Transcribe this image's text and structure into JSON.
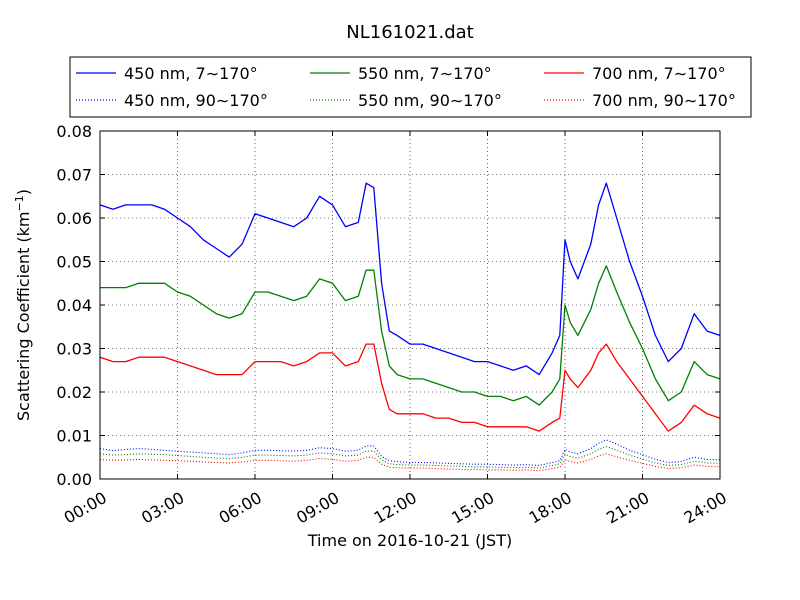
{
  "chart_data": {
    "type": "line",
    "title": "NL161021.dat",
    "xlabel": "Time on 2016-10-21 (JST)",
    "ylabel": "Scattering Coefficient (km",
    "ylabel_sup": "−1",
    "ylabel_end": ")",
    "xlim": [
      0,
      24
    ],
    "ylim": [
      0,
      0.08
    ],
    "grid": true,
    "legend_position": "top",
    "x_ticks": [
      0,
      3,
      6,
      9,
      12,
      15,
      18,
      21,
      24
    ],
    "x_tick_labels": [
      "00:00",
      "03:00",
      "06:00",
      "09:00",
      "12:00",
      "15:00",
      "18:00",
      "21:00",
      "24:00"
    ],
    "y_ticks": [
      0,
      0.01,
      0.02,
      0.03,
      0.04,
      0.05,
      0.06,
      0.07,
      0.08
    ],
    "y_tick_labels": [
      "0.00",
      "0.01",
      "0.02",
      "0.03",
      "0.04",
      "0.05",
      "0.06",
      "0.07",
      "0.08"
    ],
    "x": [
      0,
      0.5,
      1,
      1.5,
      2,
      2.5,
      3,
      3.5,
      4,
      4.5,
      5,
      5.5,
      6,
      6.5,
      7,
      7.5,
      8,
      8.5,
      9,
      9.5,
      10,
      10.3,
      10.6,
      10.9,
      11.2,
      11.5,
      12,
      12.5,
      13,
      13.5,
      14,
      14.5,
      15,
      15.5,
      16,
      16.5,
      17,
      17.5,
      17.8,
      18,
      18.2,
      18.5,
      19,
      19.3,
      19.6,
      20,
      20.5,
      21,
      21.5,
      22,
      22.5,
      23,
      23.5,
      24
    ],
    "series": [
      {
        "name": "450 nm, 7∼170°",
        "color": "#0000ff",
        "style": "solid",
        "values": [
          0.063,
          0.062,
          0.063,
          0.063,
          0.063,
          0.062,
          0.06,
          0.058,
          0.055,
          0.053,
          0.051,
          0.054,
          0.061,
          0.06,
          0.059,
          0.058,
          0.06,
          0.065,
          0.063,
          0.058,
          0.059,
          0.068,
          0.067,
          0.045,
          0.034,
          0.033,
          0.031,
          0.031,
          0.03,
          0.029,
          0.028,
          0.027,
          0.027,
          0.026,
          0.025,
          0.026,
          0.024,
          0.029,
          0.033,
          0.055,
          0.05,
          0.046,
          0.054,
          0.063,
          0.068,
          0.06,
          0.05,
          0.042,
          0.033,
          0.027,
          0.03,
          0.038,
          0.034,
          0.033
        ]
      },
      {
        "name": "550 nm, 7∼170°",
        "color": "#008000",
        "style": "solid",
        "values": [
          0.044,
          0.044,
          0.044,
          0.045,
          0.045,
          0.045,
          0.043,
          0.042,
          0.04,
          0.038,
          0.037,
          0.038,
          0.043,
          0.043,
          0.042,
          0.041,
          0.042,
          0.046,
          0.045,
          0.041,
          0.042,
          0.048,
          0.048,
          0.034,
          0.026,
          0.024,
          0.023,
          0.023,
          0.022,
          0.021,
          0.02,
          0.02,
          0.019,
          0.019,
          0.018,
          0.019,
          0.017,
          0.02,
          0.023,
          0.04,
          0.036,
          0.033,
          0.039,
          0.045,
          0.049,
          0.043,
          0.036,
          0.03,
          0.023,
          0.018,
          0.02,
          0.027,
          0.024,
          0.023
        ]
      },
      {
        "name": "700 nm, 7∼170°",
        "color": "#ff0000",
        "style": "solid",
        "values": [
          0.028,
          0.027,
          0.027,
          0.028,
          0.028,
          0.028,
          0.027,
          0.026,
          0.025,
          0.024,
          0.024,
          0.024,
          0.027,
          0.027,
          0.027,
          0.026,
          0.027,
          0.029,
          0.029,
          0.026,
          0.027,
          0.031,
          0.031,
          0.022,
          0.016,
          0.015,
          0.015,
          0.015,
          0.014,
          0.014,
          0.013,
          0.013,
          0.012,
          0.012,
          0.012,
          0.012,
          0.011,
          0.013,
          0.014,
          0.025,
          0.023,
          0.021,
          0.025,
          0.029,
          0.031,
          0.027,
          0.023,
          0.019,
          0.015,
          0.011,
          0.013,
          0.017,
          0.015,
          0.014
        ]
      },
      {
        "name": "450 nm, 90∼170°",
        "color": "#0000ff",
        "style": "dotted",
        "values": [
          0.007,
          0.0065,
          0.0068,
          0.007,
          0.0068,
          0.0066,
          0.0064,
          0.0062,
          0.006,
          0.0058,
          0.0056,
          0.006,
          0.0066,
          0.0066,
          0.0065,
          0.0064,
          0.0066,
          0.0072,
          0.007,
          0.0064,
          0.0066,
          0.0076,
          0.0076,
          0.0052,
          0.0042,
          0.004,
          0.0038,
          0.0038,
          0.0037,
          0.0036,
          0.0035,
          0.0034,
          0.0034,
          0.0033,
          0.0032,
          0.0033,
          0.0031,
          0.0038,
          0.0042,
          0.0068,
          0.0062,
          0.0058,
          0.007,
          0.0082,
          0.009,
          0.008,
          0.0066,
          0.0056,
          0.0045,
          0.0038,
          0.004,
          0.005,
          0.0045,
          0.0044
        ]
      },
      {
        "name": "550 nm, 90∼170°",
        "color": "#008000",
        "style": "dotted",
        "values": [
          0.0058,
          0.0055,
          0.0056,
          0.0058,
          0.0057,
          0.0056,
          0.0054,
          0.0052,
          0.005,
          0.0048,
          0.0047,
          0.005,
          0.0055,
          0.0055,
          0.0054,
          0.0053,
          0.0055,
          0.006,
          0.0058,
          0.0053,
          0.0055,
          0.0064,
          0.0064,
          0.0044,
          0.0035,
          0.0033,
          0.0032,
          0.0032,
          0.0031,
          0.003,
          0.0029,
          0.0028,
          0.0028,
          0.0027,
          0.0026,
          0.0027,
          0.0025,
          0.0031,
          0.0035,
          0.0057,
          0.0052,
          0.0048,
          0.0058,
          0.0068,
          0.0075,
          0.0066,
          0.0055,
          0.0046,
          0.0037,
          0.0031,
          0.0033,
          0.0041,
          0.0037,
          0.0036
        ]
      },
      {
        "name": "700 nm, 90∼170°",
        "color": "#ff0000",
        "style": "dotted",
        "values": [
          0.0045,
          0.0043,
          0.0044,
          0.0045,
          0.0044,
          0.0043,
          0.0042,
          0.0041,
          0.0039,
          0.0038,
          0.0037,
          0.0039,
          0.0043,
          0.0043,
          0.0042,
          0.0041,
          0.0043,
          0.0047,
          0.0045,
          0.0041,
          0.0043,
          0.005,
          0.005,
          0.0034,
          0.0027,
          0.0026,
          0.0025,
          0.0025,
          0.0024,
          0.0023,
          0.0022,
          0.0022,
          0.0021,
          0.0021,
          0.002,
          0.0021,
          0.0019,
          0.0024,
          0.0027,
          0.0044,
          0.004,
          0.0037,
          0.0045,
          0.0053,
          0.0058,
          0.0051,
          0.0043,
          0.0036,
          0.0029,
          0.0024,
          0.0026,
          0.0032,
          0.0029,
          0.0028
        ]
      }
    ]
  }
}
